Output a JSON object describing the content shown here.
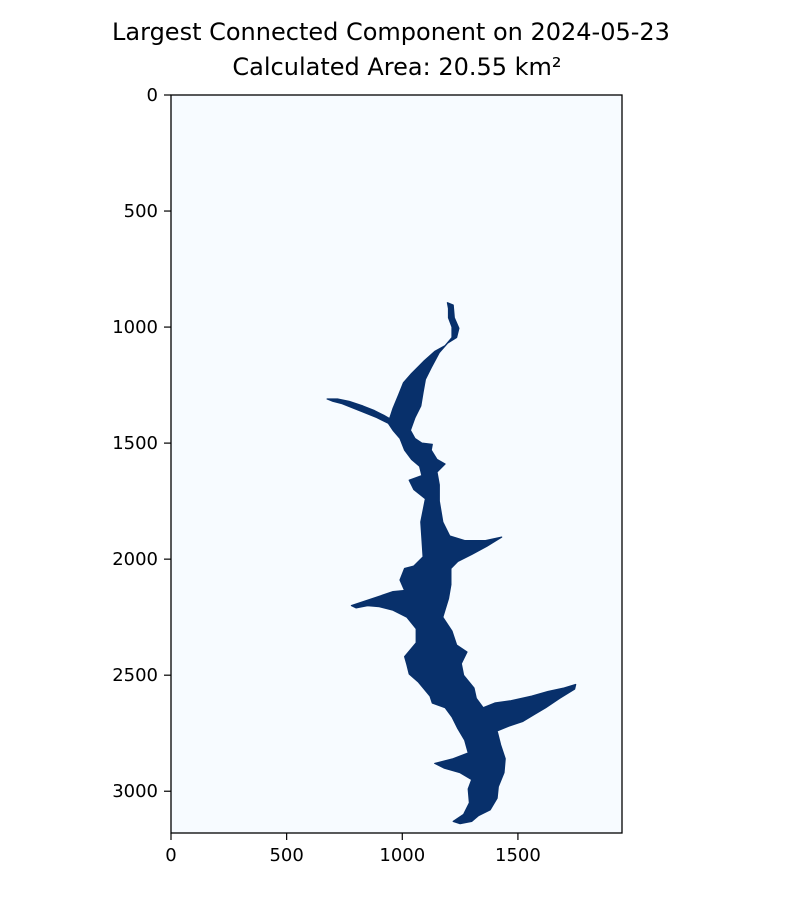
{
  "chart_data": {
    "type": "heatmap",
    "title": "Largest Connected Component on 2024-05-23",
    "subtitle": "Calculated Area: 20.55 km²",
    "xlabel": "",
    "ylabel": "",
    "xlim": [
      0,
      1950
    ],
    "ylim": [
      3180,
      0
    ],
    "x_ticks": [
      0,
      500,
      1000,
      1500
    ],
    "y_ticks": [
      0,
      500,
      1000,
      1500,
      2000,
      2500,
      3000
    ],
    "grid": false,
    "colormap": "Blues",
    "background_color": "#f7fbff",
    "component_color": "#08306b",
    "component_outline": [
      [
        1195,
        895
      ],
      [
        1220,
        905
      ],
      [
        1225,
        960
      ],
      [
        1245,
        1005
      ],
      [
        1235,
        1045
      ],
      [
        1195,
        1070
      ],
      [
        1160,
        1110
      ],
      [
        1125,
        1175
      ],
      [
        1100,
        1225
      ],
      [
        1090,
        1280
      ],
      [
        1080,
        1340
      ],
      [
        1055,
        1390
      ],
      [
        1035,
        1445
      ],
      [
        1055,
        1480
      ],
      [
        1085,
        1500
      ],
      [
        1130,
        1505
      ],
      [
        1125,
        1530
      ],
      [
        1150,
        1570
      ],
      [
        1185,
        1590
      ],
      [
        1150,
        1625
      ],
      [
        1160,
        1680
      ],
      [
        1160,
        1750
      ],
      [
        1175,
        1840
      ],
      [
        1205,
        1900
      ],
      [
        1270,
        1920
      ],
      [
        1360,
        1920
      ],
      [
        1430,
        1905
      ],
      [
        1365,
        1945
      ],
      [
        1300,
        1980
      ],
      [
        1240,
        2010
      ],
      [
        1210,
        2040
      ],
      [
        1210,
        2110
      ],
      [
        1200,
        2170
      ],
      [
        1175,
        2250
      ],
      [
        1215,
        2310
      ],
      [
        1235,
        2370
      ],
      [
        1280,
        2400
      ],
      [
        1255,
        2450
      ],
      [
        1265,
        2500
      ],
      [
        1310,
        2555
      ],
      [
        1320,
        2600
      ],
      [
        1350,
        2640
      ],
      [
        1400,
        2620
      ],
      [
        1470,
        2610
      ],
      [
        1560,
        2590
      ],
      [
        1630,
        2570
      ],
      [
        1700,
        2555
      ],
      [
        1750,
        2540
      ],
      [
        1745,
        2560
      ],
      [
        1680,
        2600
      ],
      [
        1620,
        2640
      ],
      [
        1570,
        2670
      ],
      [
        1520,
        2700
      ],
      [
        1460,
        2720
      ],
      [
        1410,
        2740
      ],
      [
        1425,
        2800
      ],
      [
        1445,
        2860
      ],
      [
        1440,
        2920
      ],
      [
        1415,
        2980
      ],
      [
        1410,
        3030
      ],
      [
        1380,
        3080
      ],
      [
        1330,
        3105
      ],
      [
        1300,
        3130
      ],
      [
        1250,
        3140
      ],
      [
        1220,
        3130
      ],
      [
        1265,
        3100
      ],
      [
        1290,
        3050
      ],
      [
        1285,
        2990
      ],
      [
        1300,
        2950
      ],
      [
        1250,
        2920
      ],
      [
        1180,
        2900
      ],
      [
        1140,
        2880
      ],
      [
        1220,
        2860
      ],
      [
        1285,
        2835
      ],
      [
        1270,
        2780
      ],
      [
        1240,
        2730
      ],
      [
        1215,
        2680
      ],
      [
        1185,
        2640
      ],
      [
        1130,
        2620
      ],
      [
        1120,
        2590
      ],
      [
        1070,
        2530
      ],
      [
        1030,
        2495
      ],
      [
        1020,
        2455
      ],
      [
        1010,
        2420
      ],
      [
        1060,
        2360
      ],
      [
        1060,
        2300
      ],
      [
        1020,
        2250
      ],
      [
        960,
        2220
      ],
      [
        900,
        2205
      ],
      [
        850,
        2200
      ],
      [
        800,
        2210
      ],
      [
        780,
        2200
      ],
      [
        840,
        2180
      ],
      [
        900,
        2160
      ],
      [
        960,
        2140
      ],
      [
        1010,
        2135
      ],
      [
        990,
        2090
      ],
      [
        1010,
        2040
      ],
      [
        1050,
        2030
      ],
      [
        1090,
        1990
      ],
      [
        1085,
        1910
      ],
      [
        1080,
        1840
      ],
      [
        1090,
        1790
      ],
      [
        1100,
        1740
      ],
      [
        1050,
        1700
      ],
      [
        1030,
        1660
      ],
      [
        1085,
        1640
      ],
      [
        1075,
        1600
      ],
      [
        1040,
        1570
      ],
      [
        1010,
        1530
      ],
      [
        990,
        1480
      ],
      [
        960,
        1445
      ],
      [
        940,
        1415
      ],
      [
        890,
        1390
      ],
      [
        840,
        1370
      ],
      [
        790,
        1350
      ],
      [
        740,
        1330
      ],
      [
        700,
        1320
      ],
      [
        675,
        1310
      ],
      [
        720,
        1310
      ],
      [
        770,
        1320
      ],
      [
        830,
        1340
      ],
      [
        880,
        1360
      ],
      [
        920,
        1380
      ],
      [
        945,
        1395
      ],
      [
        960,
        1350
      ],
      [
        985,
        1290
      ],
      [
        1005,
        1240
      ],
      [
        1040,
        1200
      ],
      [
        1070,
        1170
      ],
      [
        1095,
        1145
      ],
      [
        1140,
        1105
      ],
      [
        1185,
        1080
      ],
      [
        1215,
        1045
      ],
      [
        1215,
        1000
      ],
      [
        1200,
        960
      ],
      [
        1200,
        920
      ]
    ]
  }
}
